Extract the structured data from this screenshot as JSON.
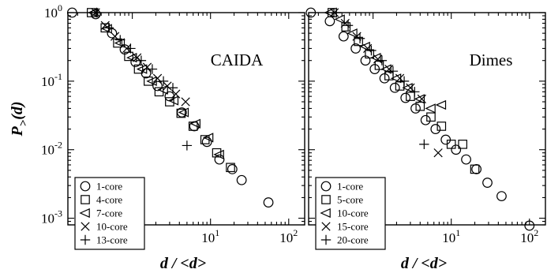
{
  "chart_data": [
    {
      "type": "scatter",
      "title": "CAIDA",
      "xlabel": "d / <d>",
      "ylabel": "P_>(d)",
      "xscale": "log",
      "yscale": "log",
      "xlim": [
        0.15,
        160
      ],
      "ylim": [
        0.0008,
        1.0
      ],
      "grid": false,
      "legend_position": "bottom-left",
      "x_ticks": [
        {
          "value": 1,
          "base": "10",
          "exp": "0"
        },
        {
          "value": 10,
          "base": "10",
          "exp": "1"
        },
        {
          "value": 100,
          "base": "10",
          "exp": "2"
        }
      ],
      "y_ticks": [
        {
          "value": 1,
          "base": "10",
          "exp": "0"
        },
        {
          "value": 0.1,
          "base": "10",
          "exp": "-1"
        },
        {
          "value": 0.01,
          "base": "10",
          "exp": "-2"
        },
        {
          "value": 0.001,
          "base": "10",
          "exp": "-3"
        }
      ],
      "series": [
        {
          "name": "1-core",
          "marker": "circle",
          "x": [
            0.17,
            0.34,
            0.55,
            0.8,
            1.1,
            1.5,
            2.1,
            3.0,
            4.3,
            6.2,
            9.0,
            13,
            19,
            25,
            55
          ],
          "y": [
            1.0,
            0.95,
            0.5,
            0.29,
            0.19,
            0.13,
            0.085,
            0.06,
            0.035,
            0.022,
            0.013,
            0.0072,
            0.0052,
            0.0036,
            0.0017
          ]
        },
        {
          "name": "4-core",
          "marker": "square",
          "x": [
            0.3,
            0.45,
            0.65,
            0.9,
            1.2,
            1.6,
            2.2,
            3.0,
            4.2,
            6.0,
            8.5,
            12,
            18
          ],
          "y": [
            1.0,
            0.6,
            0.36,
            0.23,
            0.15,
            0.1,
            0.07,
            0.05,
            0.034,
            0.022,
            0.014,
            0.009,
            0.0055
          ]
        },
        {
          "name": "7-core",
          "marker": "triangle-left",
          "x": [
            0.32,
            0.48,
            0.7,
            1.0,
            1.35,
            1.8,
            2.5,
            3.4,
            4.6,
            6.5,
            9.5,
            13
          ],
          "y": [
            1.0,
            0.58,
            0.36,
            0.22,
            0.15,
            0.1,
            0.075,
            0.052,
            0.035,
            0.024,
            0.015,
            0.0085
          ]
        },
        {
          "name": "10-core",
          "marker": "x",
          "x": [
            0.34,
            0.45,
            0.6,
            0.85,
            1.15,
            1.55,
            2.1,
            2.8,
            3.6,
            4.8
          ],
          "y": [
            1.0,
            0.65,
            0.45,
            0.3,
            0.22,
            0.16,
            0.11,
            0.085,
            0.065,
            0.05
          ]
        },
        {
          "name": "13-core",
          "marker": "plus",
          "x": [
            0.35,
            0.5,
            0.7,
            0.95,
            1.3,
            1.8,
            2.5,
            3.3,
            5.0
          ],
          "y": [
            1.0,
            0.6,
            0.4,
            0.3,
            0.2,
            0.15,
            0.1,
            0.08,
            0.0115
          ]
        }
      ]
    },
    {
      "type": "scatter",
      "title": "Dimes",
      "xlabel": "d / <d>",
      "ylabel": "",
      "xscale": "log",
      "yscale": "log",
      "xlim": [
        0.15,
        160
      ],
      "ylim": [
        0.0008,
        1.0
      ],
      "grid": false,
      "legend_position": "bottom-left",
      "x_ticks": [
        {
          "value": 1,
          "base": "10",
          "exp": "0"
        },
        {
          "value": 10,
          "base": "10",
          "exp": "1"
        },
        {
          "value": 100,
          "base": "10",
          "exp": "2"
        }
      ],
      "series": [
        {
          "name": "1-core",
          "marker": "circle",
          "x": [
            0.16,
            0.28,
            0.42,
            0.6,
            0.8,
            1.05,
            1.4,
            1.9,
            2.6,
            3.5,
            4.7,
            6.3,
            8.5,
            11.5,
            15.5,
            21,
            29,
            44,
            100
          ],
          "y": [
            1.0,
            0.75,
            0.45,
            0.3,
            0.2,
            0.15,
            0.11,
            0.08,
            0.057,
            0.04,
            0.027,
            0.02,
            0.014,
            0.01,
            0.0072,
            0.0052,
            0.0033,
            0.0021,
            0.00078
          ]
        },
        {
          "name": "5-core",
          "marker": "square",
          "x": [
            0.3,
            0.45,
            0.65,
            0.9,
            1.2,
            1.6,
            2.2,
            3.0,
            4.0,
            5.5,
            7.5,
            10,
            14,
            20
          ],
          "y": [
            1.0,
            0.62,
            0.38,
            0.25,
            0.17,
            0.12,
            0.085,
            0.06,
            0.043,
            0.03,
            0.022,
            0.012,
            0.012,
            0.0052
          ]
        },
        {
          "name": "10-core",
          "marker": "triangle-left",
          "x": [
            0.28,
            0.38,
            0.55,
            0.8,
            1.1,
            1.5,
            2.0,
            2.8,
            4.0,
            5.5,
            7.5
          ],
          "y": [
            1.0,
            0.8,
            0.5,
            0.32,
            0.22,
            0.15,
            0.11,
            0.08,
            0.055,
            0.04,
            0.045
          ]
        },
        {
          "name": "15-core",
          "marker": "x",
          "x": [
            0.32,
            0.44,
            0.62,
            0.85,
            1.15,
            1.6,
            2.2,
            3.0,
            4.2,
            6.8
          ],
          "y": [
            1.0,
            0.7,
            0.45,
            0.3,
            0.21,
            0.15,
            0.11,
            0.08,
            0.055,
            0.009
          ]
        },
        {
          "name": "20-core",
          "marker": "plus",
          "x": [
            0.34,
            0.48,
            0.68,
            0.95,
            1.3,
            1.8,
            2.5,
            3.4,
            4.5
          ],
          "y": [
            1.0,
            0.65,
            0.42,
            0.28,
            0.2,
            0.14,
            0.1,
            0.07,
            0.012
          ]
        }
      ]
    }
  ]
}
